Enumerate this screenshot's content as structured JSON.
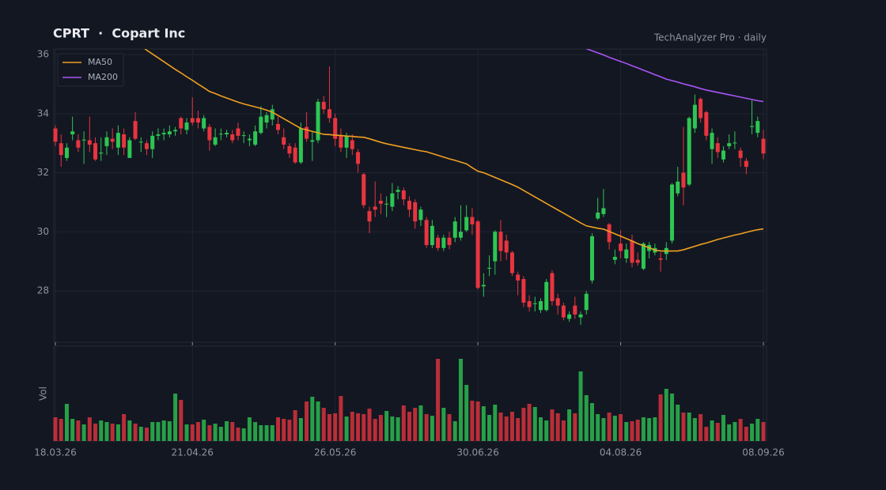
{
  "chart_data": {
    "type": "candlestick",
    "title": "CPRT  ·  Copart Inc",
    "subtitle": "TechAnalyzer Pro · daily",
    "volume_label": "Vol",
    "categories": [
      "18.03.26",
      "19.03.26",
      "20.03.26",
      "23.03.26",
      "24.03.26",
      "25.03.26",
      "26.03.26",
      "27.03.26",
      "30.03.26",
      "31.03.26",
      "01.04.26",
      "02.04.26",
      "03.04.26",
      "06.04.26",
      "07.04.26",
      "08.04.26",
      "09.04.26",
      "10.04.26",
      "13.04.26",
      "14.04.26",
      "15.04.26",
      "16.04.26",
      "17.04.26",
      "20.04.26",
      "21.04.26",
      "22.04.26",
      "23.04.26",
      "24.04.26",
      "27.04.26",
      "28.04.26",
      "29.04.26",
      "30.04.26",
      "01.05.26",
      "04.05.26",
      "05.05.26",
      "06.05.26",
      "07.05.26",
      "08.05.26",
      "11.05.26",
      "12.05.26",
      "13.05.26",
      "14.05.26",
      "15.05.26",
      "18.05.26",
      "19.05.26",
      "20.05.26",
      "21.05.26",
      "22.05.26",
      "25.05.26",
      "26.05.26",
      "27.05.26",
      "28.05.26",
      "29.05.26",
      "01.06.26",
      "02.06.26",
      "03.06.26",
      "04.06.26",
      "05.06.26",
      "08.06.26",
      "09.06.26",
      "10.06.26",
      "11.06.26",
      "12.06.26",
      "15.06.26",
      "16.06.26",
      "17.06.26",
      "18.06.26",
      "19.06.26",
      "22.06.26",
      "23.06.26",
      "24.06.26",
      "25.06.26",
      "26.06.26",
      "29.06.26",
      "30.06.26",
      "01.07.26",
      "02.07.26",
      "03.07.26",
      "06.07.26",
      "07.07.26",
      "08.07.26",
      "09.07.26",
      "10.07.26",
      "13.07.26",
      "14.07.26",
      "15.07.26",
      "16.07.26",
      "17.07.26",
      "20.07.26",
      "21.07.26",
      "22.07.26",
      "23.07.26",
      "24.07.26",
      "27.07.26",
      "28.07.26",
      "29.07.26",
      "30.07.26",
      "31.07.26",
      "03.08.26",
      "04.08.26",
      "05.08.26",
      "06.08.26",
      "07.08.26",
      "10.08.26",
      "11.08.26",
      "12.08.26",
      "13.08.26",
      "14.08.26",
      "17.08.26",
      "18.08.26",
      "19.08.26",
      "20.08.26",
      "21.08.26",
      "24.08.26",
      "25.08.26",
      "26.08.26",
      "27.08.26",
      "28.08.26",
      "31.08.26",
      "01.09.26",
      "02.09.26",
      "03.09.26",
      "04.09.26",
      "07.09.26",
      "08.09.26"
    ],
    "open": [
      33.5,
      33.0,
      32.5,
      33.3,
      33.1,
      33.1,
      33.1,
      33.0,
      32.65,
      32.9,
      33.15,
      32.85,
      33.3,
      32.5,
      33.75,
      33.05,
      33.0,
      32.8,
      33.25,
      33.3,
      33.3,
      33.4,
      33.85,
      33.45,
      33.85,
      33.85,
      33.5,
      33.55,
      32.95,
      33.3,
      33.3,
      33.3,
      33.5,
      33.25,
      33.1,
      32.95,
      33.35,
      33.7,
      33.8,
      33.65,
      33.2,
      32.9,
      32.85,
      32.35,
      33.55,
      33.05,
      33.1,
      34.4,
      34.15,
      33.85,
      33.25,
      32.85,
      33.1,
      32.7,
      31.95,
      30.7,
      30.85,
      31.05,
      30.93,
      30.85,
      31.35,
      31.4,
      31.05,
      31.0,
      30.4,
      30.4,
      29.55,
      29.8,
      29.45,
      29.8,
      29.8,
      29.8,
      30.05,
      30.5,
      30.35,
      28.15,
      28.75,
      29.0,
      30.0,
      29.7,
      29.3,
      28.55,
      28.4,
      27.65,
      27.55,
      27.35,
      27.35,
      28.6,
      27.75,
      27.5,
      27.05,
      27.5,
      27.1,
      27.35,
      28.35,
      30.45,
      30.6,
      30.25,
      29.05,
      29.6,
      29.1,
      29.7,
      29.05,
      28.75,
      29.35,
      29.3,
      29.1,
      29.25,
      29.7,
      31.3,
      32.0,
      31.6,
      33.5,
      34.5,
      34.05,
      32.8,
      33.0,
      32.45,
      32.9,
      33.0,
      32.75,
      32.4,
      33.55,
      33.35,
      33.15
    ],
    "high": [
      33.6,
      33.3,
      33.0,
      33.9,
      33.3,
      33.4,
      33.9,
      33.2,
      33.2,
      33.4,
      33.5,
      33.6,
      33.5,
      33.2,
      34.05,
      33.2,
      33.1,
      33.4,
      33.5,
      33.5,
      33.6,
      33.55,
      33.9,
      33.85,
      34.55,
      34.1,
      33.95,
      33.65,
      33.5,
      33.5,
      33.45,
      33.45,
      33.7,
      33.4,
      33.3,
      33.6,
      34.25,
      34.05,
      34.3,
      33.9,
      33.5,
      33.0,
      33.0,
      33.7,
      34.05,
      33.4,
      34.5,
      34.6,
      35.6,
      34.0,
      33.5,
      33.35,
      33.3,
      32.8,
      32.0,
      30.85,
      31.7,
      31.3,
      31.2,
      31.65,
      31.55,
      31.5,
      31.2,
      31.1,
      30.85,
      30.5,
      30.4,
      29.9,
      29.9,
      30.0,
      30.5,
      30.9,
      30.9,
      30.8,
      30.4,
      28.6,
      29.2,
      30.05,
      30.4,
      29.9,
      29.35,
      28.65,
      28.5,
      27.85,
      27.8,
      27.75,
      28.4,
      28.7,
      27.9,
      27.6,
      27.3,
      27.8,
      27.3,
      28.0,
      29.95,
      31.15,
      31.45,
      30.3,
      29.4,
      30.05,
      29.6,
      29.9,
      29.3,
      29.65,
      29.65,
      29.6,
      29.3,
      29.65,
      31.65,
      32.2,
      33.55,
      33.9,
      34.65,
      34.55,
      34.1,
      33.5,
      33.2,
      32.9,
      33.3,
      33.4,
      32.85,
      32.5,
      34.45,
      33.9,
      33.45
    ],
    "low": [
      32.9,
      32.2,
      32.4,
      33.1,
      32.7,
      32.3,
      32.7,
      32.4,
      32.4,
      32.6,
      32.8,
      32.6,
      32.6,
      32.5,
      33.1,
      32.7,
      32.6,
      32.5,
      33.1,
      33.1,
      33.2,
      33.25,
      33.3,
      33.3,
      33.6,
      33.5,
      33.4,
      32.75,
      32.9,
      33.1,
      33.2,
      33.0,
      33.1,
      33.0,
      32.9,
      32.9,
      33.3,
      33.5,
      33.6,
      33.3,
      32.8,
      32.5,
      32.3,
      32.3,
      33.05,
      32.4,
      33.0,
      34.0,
      33.7,
      32.9,
      32.7,
      32.5,
      32.6,
      32.0,
      30.8,
      29.95,
      30.5,
      30.6,
      30.5,
      30.7,
      31.1,
      30.9,
      30.5,
      30.1,
      30.2,
      29.45,
      29.45,
      29.35,
      29.35,
      29.4,
      29.65,
      29.7,
      30.0,
      29.9,
      28.05,
      27.8,
      28.5,
      28.55,
      29.0,
      29.05,
      28.5,
      27.85,
      27.45,
      27.3,
      27.3,
      27.25,
      27.3,
      27.5,
      27.2,
      27.0,
      26.95,
      27.05,
      26.85,
      27.2,
      28.25,
      30.4,
      30.5,
      29.4,
      28.9,
      29.1,
      28.95,
      28.8,
      28.85,
      28.7,
      29.1,
      29.2,
      28.65,
      29.05,
      29.6,
      31.2,
      30.9,
      31.55,
      33.35,
      33.7,
      33.1,
      32.3,
      32.5,
      32.35,
      32.8,
      32.8,
      32.2,
      31.95,
      33.3,
      33.2,
      32.45
    ],
    "close": [
      33.05,
      32.6,
      32.85,
      33.4,
      32.85,
      33.12,
      32.95,
      32.45,
      32.68,
      33.2,
      33.05,
      33.35,
      32.85,
      33.1,
      33.15,
      33.05,
      32.8,
      33.25,
      33.3,
      33.35,
      33.4,
      33.45,
      33.5,
      33.7,
      33.7,
      33.7,
      33.85,
      33.1,
      33.2,
      33.32,
      33.35,
      33.1,
      33.25,
      33.27,
      33.15,
      33.4,
      33.9,
      33.95,
      34.15,
      33.45,
      32.95,
      32.65,
      32.35,
      33.5,
      33.15,
      33.1,
      34.4,
      34.15,
      33.85,
      33.15,
      32.85,
      33.25,
      32.8,
      32.3,
      30.9,
      30.35,
      30.75,
      30.95,
      30.95,
      31.3,
      31.42,
      31.1,
      30.75,
      30.35,
      30.75,
      29.55,
      30.2,
      29.45,
      29.8,
      29.55,
      30.35,
      30.0,
      30.5,
      30.25,
      28.1,
      28.2,
      28.78,
      30.0,
      29.35,
      29.3,
      28.6,
      28.35,
      27.6,
      27.45,
      27.58,
      27.65,
      28.3,
      27.65,
      27.5,
      27.1,
      27.2,
      27.2,
      27.2,
      27.9,
      29.85,
      30.65,
      30.8,
      29.65,
      29.15,
      29.35,
      29.4,
      28.95,
      28.95,
      29.6,
      29.55,
      29.45,
      29.05,
      29.45,
      31.6,
      31.7,
      31.5,
      33.85,
      34.3,
      33.85,
      33.25,
      33.35,
      32.7,
      32.75,
      33.0,
      33.02,
      32.5,
      32.2,
      33.58,
      33.75,
      32.65
    ],
    "volume": [
      3.0,
      2.8,
      4.7,
      2.8,
      2.6,
      2.1,
      3.0,
      2.2,
      2.6,
      2.4,
      2.2,
      2.1,
      3.4,
      2.6,
      2.2,
      1.8,
      1.7,
      2.4,
      2.4,
      2.6,
      2.5,
      6.0,
      5.2,
      2.1,
      2.1,
      2.4,
      2.7,
      2.0,
      2.2,
      1.8,
      2.5,
      2.4,
      1.7,
      1.6,
      3.0,
      2.4,
      2.0,
      2.0,
      2.0,
      3.0,
      2.8,
      2.7,
      3.9,
      2.9,
      5.0,
      5.6,
      5.0,
      4.2,
      3.4,
      3.5,
      5.7,
      3.1,
      3.7,
      3.5,
      3.4,
      4.1,
      2.8,
      3.3,
      3.8,
      3.1,
      3.0,
      4.5,
      3.7,
      4.2,
      4.5,
      3.4,
      3.2,
      10.4,
      4.2,
      3.4,
      2.5,
      10.4,
      7.1,
      5.1,
      5.0,
      4.4,
      3.3,
      4.6,
      3.6,
      3.1,
      3.7,
      2.9,
      4.2,
      4.7,
      4.3,
      3.0,
      2.6,
      4.0,
      3.5,
      2.6,
      4.0,
      3.5,
      8.8,
      5.8,
      4.8,
      3.4,
      2.9,
      3.6,
      3.2,
      3.4,
      2.4,
      2.5,
      2.7,
      3.0,
      2.9,
      3.0,
      5.9,
      6.6,
      6.0,
      4.6,
      3.6,
      3.6,
      2.9,
      3.4,
      1.8,
      2.6,
      2.3,
      3.3,
      2.1,
      2.4,
      2.8,
      1.8,
      2.2,
      2.8,
      2.4
    ],
    "up_color": "#2dc653",
    "down_color": "#e8353f",
    "series": [
      {
        "name": "MA50",
        "color": "#f0a020",
        "values": [
          null,
          null,
          null,
          null,
          null,
          null,
          null,
          null,
          null,
          null,
          null,
          null,
          null,
          null,
          null,
          36.3,
          36.15,
          36.02,
          35.89,
          35.76,
          35.63,
          35.5,
          35.38,
          35.25,
          35.13,
          35.0,
          34.88,
          34.75,
          34.68,
          34.6,
          34.53,
          34.46,
          34.39,
          34.33,
          34.28,
          34.23,
          34.18,
          34.12,
          34.05,
          33.94,
          33.83,
          33.72,
          33.61,
          33.5,
          33.45,
          33.4,
          33.35,
          33.3,
          33.29,
          33.27,
          33.26,
          33.24,
          33.23,
          33.21,
          33.2,
          33.15,
          33.09,
          33.03,
          32.98,
          32.94,
          32.9,
          32.86,
          32.82,
          32.78,
          32.74,
          32.71,
          32.65,
          32.59,
          32.53,
          32.47,
          32.42,
          32.36,
          32.3,
          32.17,
          32.05,
          32.0,
          31.92,
          31.84,
          31.76,
          31.68,
          31.6,
          31.51,
          31.4,
          31.29,
          31.18,
          31.07,
          30.96,
          30.85,
          30.74,
          30.63,
          30.52,
          30.41,
          30.3,
          30.2,
          30.16,
          30.12,
          30.09,
          30.01,
          29.93,
          29.85,
          29.77,
          29.69,
          29.6,
          29.53,
          29.46,
          29.38,
          29.35,
          29.35,
          29.35,
          29.35,
          29.39,
          29.45,
          29.51,
          29.57,
          29.62,
          29.68,
          29.74,
          29.79,
          29.84,
          29.89,
          29.93,
          29.98,
          30.03,
          30.07,
          30.1
        ]
      },
      {
        "name": "MA200",
        "color": "#a855f7",
        "values": [
          null,
          null,
          null,
          null,
          null,
          null,
          null,
          null,
          null,
          null,
          null,
          null,
          null,
          null,
          null,
          null,
          null,
          null,
          null,
          null,
          null,
          null,
          null,
          null,
          null,
          null,
          null,
          null,
          null,
          null,
          null,
          null,
          null,
          null,
          null,
          null,
          null,
          null,
          null,
          null,
          null,
          null,
          null,
          null,
          null,
          null,
          null,
          null,
          null,
          null,
          null,
          null,
          null,
          null,
          null,
          null,
          null,
          null,
          null,
          null,
          null,
          null,
          null,
          null,
          null,
          null,
          null,
          null,
          null,
          null,
          null,
          null,
          null,
          null,
          null,
          null,
          null,
          null,
          null,
          null,
          null,
          null,
          null,
          null,
          null,
          null,
          null,
          null,
          null,
          null,
          null,
          null,
          36.28,
          36.2,
          36.13,
          36.06,
          35.99,
          35.91,
          35.84,
          35.77,
          35.7,
          35.62,
          35.55,
          35.47,
          35.4,
          35.32,
          35.25,
          35.17,
          35.12,
          35.07,
          35.01,
          34.96,
          34.91,
          34.85,
          34.8,
          34.76,
          34.72,
          34.68,
          34.64,
          34.6,
          34.56,
          34.52,
          34.48,
          34.44,
          34.41
        ]
      }
    ],
    "ylim": [
      26.26,
      36.19
    ],
    "yticks": [
      28,
      30,
      32,
      34,
      36
    ],
    "xticks": [
      "18.03.26",
      "21.04.26",
      "26.05.26",
      "30.06.26",
      "04.08.26",
      "08.09.26"
    ],
    "grid": true,
    "legend": "upper-left"
  }
}
